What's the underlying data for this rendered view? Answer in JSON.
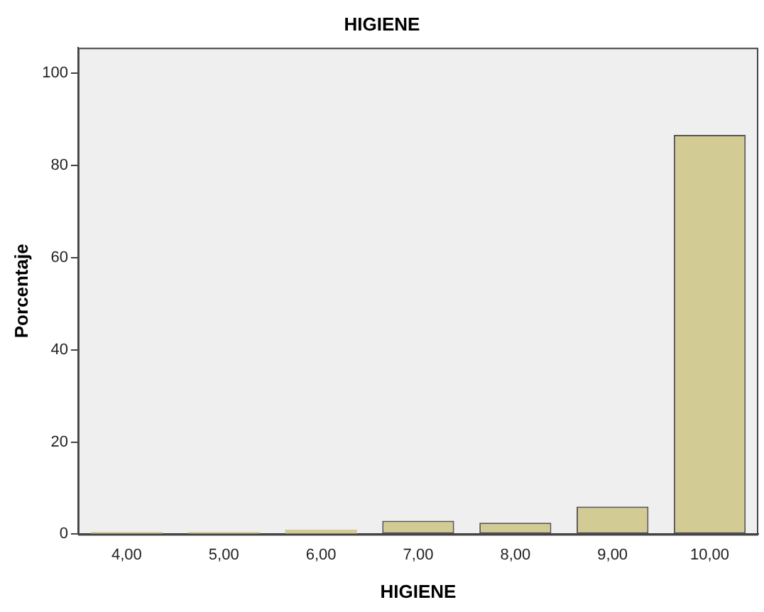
{
  "chart_data": {
    "type": "bar",
    "title": "HIGIENE",
    "xlabel": "HIGIENE",
    "ylabel": "Porcentaje",
    "categories": [
      "4,00",
      "5,00",
      "6,00",
      "7,00",
      "8,00",
      "9,00",
      "10,00"
    ],
    "values": [
      0.5,
      0.5,
      1,
      2.9,
      2.5,
      6,
      86.6
    ],
    "color": "#d2cc94",
    "ylim": [
      0,
      105.5
    ],
    "yticks": [
      0,
      20,
      40,
      60,
      80,
      100
    ],
    "grid": false,
    "legend": false
  }
}
